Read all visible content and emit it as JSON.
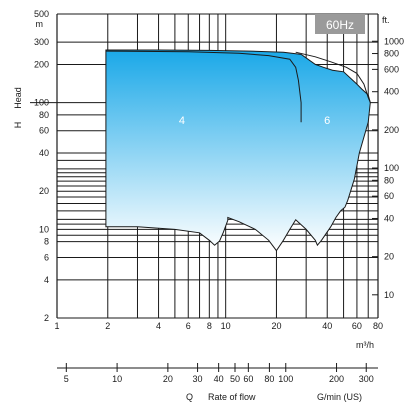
{
  "chart_data": {
    "type": "area",
    "title": "",
    "badge": "60Hz",
    "ylabel_letter": "H",
    "ylabel_word": "Head",
    "ylabel_unit": "m",
    "y2label_unit": "ft.",
    "x_unit": "m³/h",
    "x2_q": "Q",
    "x2_rate": "Rate of flow",
    "x2_unit": "G/min (US)",
    "x_scale": "log",
    "y_scale": "log",
    "xlim": [
      1,
      80
    ],
    "ylim": [
      2,
      500
    ],
    "grid": true,
    "x_ticks": [
      1,
      2,
      4,
      6,
      8,
      10,
      20,
      40,
      60,
      80
    ],
    "y_ticks": [
      2,
      4,
      6,
      8,
      10,
      20,
      40,
      60,
      80,
      100,
      200,
      300,
      500
    ],
    "y2_ticks_ft": [
      10,
      20,
      40,
      60,
      80,
      100,
      200,
      400,
      600,
      800,
      1000
    ],
    "x2_ticks_gpm": [
      5,
      10,
      20,
      30,
      40,
      50,
      60,
      80,
      100,
      200,
      300
    ],
    "extra_y_gridlines": [
      9,
      11,
      12,
      14,
      16,
      18,
      22,
      24,
      26,
      28,
      30,
      35
    ],
    "pump_range_outline": [
      [
        1.95,
        10.5
      ],
      [
        3,
        10.5
      ],
      [
        5,
        10
      ],
      [
        7,
        9.4
      ],
      [
        8,
        8.2
      ],
      [
        8.6,
        7.5
      ],
      [
        9.2,
        8.1
      ],
      [
        9.7,
        9.5
      ],
      [
        10.3,
        11.8
      ],
      [
        10.3,
        12.4
      ],
      [
        12,
        11.5
      ],
      [
        15,
        10
      ],
      [
        18,
        8.2
      ],
      [
        20,
        6.8
      ],
      [
        22,
        8.2
      ],
      [
        24,
        10
      ],
      [
        26,
        11.9
      ],
      [
        30,
        10
      ],
      [
        34,
        8.2
      ],
      [
        35,
        7.5
      ],
      [
        37,
        8.2
      ],
      [
        42,
        10.5
      ],
      [
        45,
        12.4
      ],
      [
        48,
        14
      ],
      [
        51,
        15
      ],
      [
        53,
        17
      ],
      [
        55,
        20
      ],
      [
        58,
        25
      ],
      [
        62,
        40
      ],
      [
        70,
        70
      ],
      [
        72,
        100
      ],
      [
        70,
        115
      ],
      [
        64,
        128
      ],
      [
        60,
        140
      ],
      [
        50,
        175
      ],
      [
        43,
        180
      ],
      [
        38,
        190
      ],
      [
        34,
        200
      ],
      [
        28,
        240
      ],
      [
        22,
        250
      ],
      [
        14,
        255
      ],
      [
        8,
        258
      ],
      [
        4,
        260
      ],
      [
        1.95,
        260
      ]
    ],
    "series": [
      {
        "name": "4",
        "values": [
          [
            1.95,
            255
          ],
          [
            6,
            252
          ],
          [
            12,
            245
          ],
          [
            18,
            235
          ],
          [
            24,
            220
          ],
          [
            26,
            190
          ],
          [
            27,
            150
          ],
          [
            28,
            100
          ],
          [
            28,
            70
          ]
        ]
      },
      {
        "name": "6",
        "values": [
          [
            26,
            250
          ],
          [
            34,
            230
          ],
          [
            42,
            210
          ],
          [
            52,
            190
          ],
          [
            60,
            170
          ],
          [
            66,
            140
          ],
          [
            70,
            110
          ],
          [
            72,
            100
          ]
        ]
      }
    ],
    "colors": {
      "fill_top": "#1aa8e8",
      "fill_bottom": "#ffffff",
      "outline": "#1a1a1a",
      "grid": "#1a1a1a",
      "badge_bg": "#9a9a9a",
      "badge_text": "#ffffff"
    }
  }
}
